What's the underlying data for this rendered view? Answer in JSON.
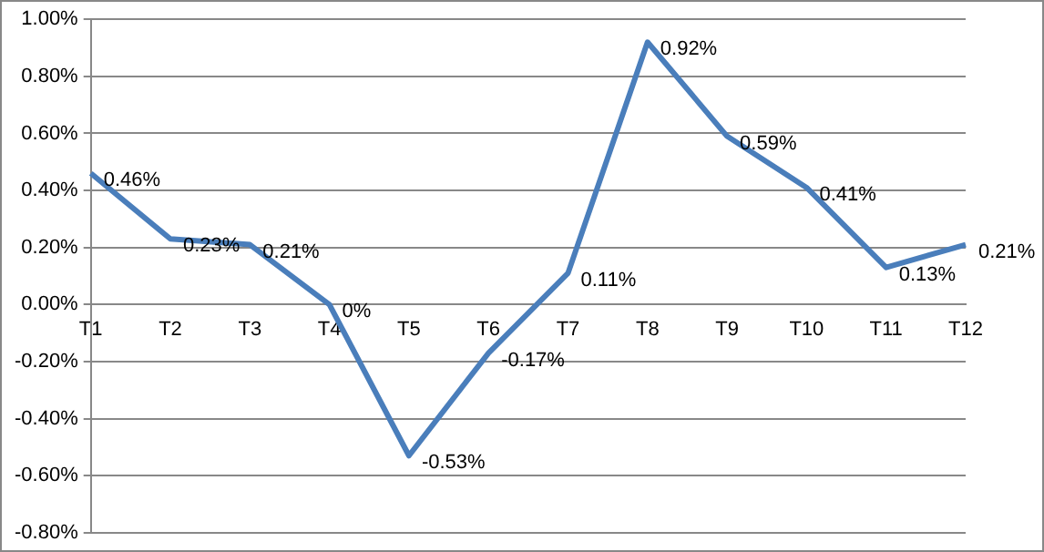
{
  "chart_data": {
    "type": "line",
    "categories": [
      "T1",
      "T2",
      "T3",
      "T4",
      "T5",
      "T6",
      "T7",
      "T8",
      "T9",
      "T10",
      "T11",
      "T12"
    ],
    "series": [
      {
        "color": "#4a7ebb",
        "values": [
          0.46,
          0.23,
          0.21,
          0,
          -0.53,
          -0.17,
          0.11,
          0.92,
          0.59,
          0.41,
          0.13,
          0.21
        ],
        "value_labels": [
          "0.46%",
          "0.23%",
          "0.21%",
          "0%",
          "-0.53%",
          "-0.17%",
          "0.11%",
          "0.92%",
          "0.59%",
          "0.41%",
          "0.13%",
          "0.21%"
        ]
      }
    ],
    "ylim": [
      -0.8,
      1
    ],
    "yticks": [
      {
        "value": -0.8,
        "label": "-0.80%"
      },
      {
        "value": -0.6,
        "label": "-0.60%"
      },
      {
        "value": -0.4,
        "label": "-0.40%"
      },
      {
        "value": -0.2,
        "label": "-0.20%"
      },
      {
        "value": 0,
        "label": "0.00%"
      },
      {
        "value": 0.2,
        "label": "0.20%"
      },
      {
        "value": 0.4,
        "label": "0.40%"
      },
      {
        "value": 0.6,
        "label": "0.60%"
      },
      {
        "value": 0.8,
        "label": "0.80%"
      },
      {
        "value": 1,
        "label": "1.00%"
      }
    ],
    "grid": "y",
    "legend": false,
    "marker": "none",
    "line_style": "solid"
  }
}
